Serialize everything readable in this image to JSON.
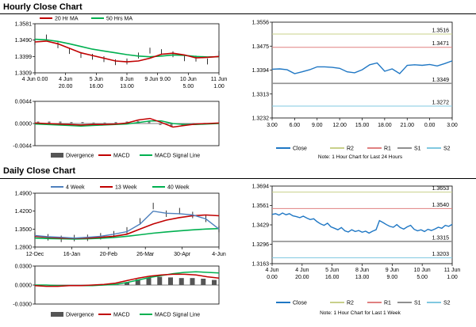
{
  "sections": [
    {
      "title": "Hourly Close Chart"
    },
    {
      "title": "Daily Close Chart"
    }
  ],
  "chart_data": [
    {
      "id": "hourly-ma",
      "type": "line",
      "legend": [
        "20 Hr MA",
        "50 Hrs MA"
      ],
      "colors": {
        "20 Hr MA": "#c00000",
        "50 Hrs MA": "#00b050",
        "price": "#000000"
      },
      "x_ticks": [
        {
          "l1": "4 Jun 0.00",
          "l2": ""
        },
        {
          "l1": "4 Jun",
          "l2": "20.00"
        },
        {
          "l1": "5 Jun",
          "l2": "16.00"
        },
        {
          "l1": "8 Jun",
          "l2": "13.00"
        },
        {
          "l1": "9 Jun 9.00",
          "l2": ""
        },
        {
          "l1": "10 Jun",
          "l2": "5.00"
        },
        {
          "l1": "11 Jun",
          "l2": "1.00"
        }
      ],
      "y_ticks": [
        "1.3581",
        "1.3490",
        "1.3399",
        "1.3309"
      ],
      "ylim": [
        1.3309,
        1.3581
      ],
      "series": [
        {
          "name": "20 Hr MA",
          "values": [
            1.348,
            1.3485,
            1.347,
            1.3445,
            1.342,
            1.3405,
            1.339,
            1.3375,
            1.337,
            1.3375,
            1.339,
            1.3412,
            1.3418,
            1.3408,
            1.3392,
            1.3395,
            1.34
          ]
        },
        {
          "name": "50 Hrs MA",
          "values": [
            1.3495,
            1.3492,
            1.3483,
            1.347,
            1.3455,
            1.344,
            1.343,
            1.342,
            1.341,
            1.3402,
            1.3398,
            1.3402,
            1.3408,
            1.3406,
            1.34,
            1.3397,
            1.3398
          ]
        },
        {
          "name": "Close",
          "values": [
            1.348,
            1.3505,
            1.3462,
            1.343,
            1.3408,
            1.3398,
            1.3385,
            1.3368,
            1.3372,
            1.3405,
            1.3432,
            1.3424,
            1.3412,
            1.339,
            1.3388,
            1.3372,
            1.3415
          ]
        }
      ]
    },
    {
      "id": "hourly-macd",
      "type": "line",
      "legend": [
        "Divergence",
        "MACD",
        "MACD Signal Line"
      ],
      "colors": {
        "Divergence": "#808080",
        "MACD": "#c00000",
        "MACD Signal Line": "#00b050"
      },
      "y_ticks": [
        "0.0044",
        "0.0000",
        "-0.0044"
      ],
      "ylim": [
        -0.0044,
        0.0044
      ],
      "series": [
        {
          "name": "Divergence",
          "values": [
            0.0004,
            0.0004,
            0.0004,
            0.0003,
            0.0003,
            0.0002,
            0.0002,
            0.0003,
            0.0004,
            0.0005,
            0.0004,
            -0.0003,
            -0.0007,
            -0.0004,
            0.0001,
            0.0001,
            0.0001
          ]
        },
        {
          "name": "MACD",
          "values": [
            0.0001,
            0.0,
            -0.0001,
            -0.0002,
            -0.0003,
            -0.0002,
            -0.0002,
            -0.0001,
            0.0001,
            0.0007,
            0.001,
            0.0002,
            -0.0007,
            -0.0004,
            -0.0001,
            0.0,
            0.0001
          ]
        },
        {
          "name": "MACD Signal Line",
          "values": [
            -0.0001,
            -0.0002,
            -0.0003,
            -0.0004,
            -0.0005,
            -0.0004,
            -0.0003,
            -0.0002,
            -0.0001,
            0.0002,
            0.0005,
            0.0005,
            0.0,
            -0.0002,
            -0.0002,
            -0.0001,
            0.0
          ]
        }
      ]
    },
    {
      "id": "hourly-24h",
      "type": "line",
      "legend": [
        "Close",
        "R2",
        "R1",
        "S1",
        "S2"
      ],
      "colors": {
        "Close": "#1f77c4",
        "R2": "#c8d08a",
        "R1": "#e08080",
        "S1": "#909090",
        "S2": "#80c8e0"
      },
      "x_ticks": [
        "3.00",
        "6.00",
        "9.00",
        "12.00",
        "15.00",
        "18.00",
        "21.00",
        "0.00",
        "3.00"
      ],
      "y_ticks": [
        "1.3556",
        "1.3475",
        "1.3394",
        "1.3313",
        "1.3232"
      ],
      "ylim": [
        1.3232,
        1.3556
      ],
      "levels": {
        "R2": 1.3516,
        "R1": 1.3471,
        "S1": 1.3349,
        "S2": 1.3272
      },
      "level_labels": {
        "R2": "1.3516",
        "R1": "1.3471",
        "S1": "1.3349",
        "S2": "1.3272"
      },
      "note": "Note: 1 Hour Chart for Last 24 Hours",
      "series": [
        {
          "name": "Close",
          "values": [
            1.3397,
            1.3398,
            1.3395,
            1.3382,
            1.3388,
            1.3395,
            1.3405,
            1.3405,
            1.3403,
            1.34,
            1.3388,
            1.3385,
            1.3395,
            1.3412,
            1.3418,
            1.339,
            1.3398,
            1.3382,
            1.341,
            1.3412,
            1.341,
            1.3413,
            1.3408,
            1.3416,
            1.3425
          ]
        }
      ]
    },
    {
      "id": "daily-ma",
      "type": "line",
      "legend": [
        "4 Week",
        "13 Week",
        "40 Week"
      ],
      "colors": {
        "4 Week": "#4f81bd",
        "13 Week": "#c00000",
        "40 Week": "#00b050",
        "price": "#000000"
      },
      "x_ticks": [
        "12-Dec",
        "16-Jan",
        "20-Feb",
        "26-Mar",
        "30-Apr",
        "4-Jun"
      ],
      "y_ticks": [
        "1.4900",
        "1.4200",
        "1.3500",
        "1.2800"
      ],
      "ylim": [
        1.28,
        1.49
      ],
      "series": [
        {
          "name": "4 Week",
          "values": [
            1.325,
            1.32,
            1.318,
            1.315,
            1.318,
            1.322,
            1.33,
            1.34,
            1.37,
            1.42,
            1.412,
            1.41,
            1.405,
            1.39,
            1.35
          ]
        },
        {
          "name": "13 Week",
          "values": [
            1.322,
            1.318,
            1.315,
            1.314,
            1.315,
            1.318,
            1.322,
            1.33,
            1.35,
            1.37,
            1.385,
            1.395,
            1.402,
            1.405,
            1.402
          ]
        },
        {
          "name": "40 Week",
          "values": [
            1.315,
            1.313,
            1.312,
            1.311,
            1.312,
            1.314,
            1.317,
            1.322,
            1.328,
            1.334,
            1.339,
            1.343,
            1.347,
            1.35,
            1.352
          ]
        },
        {
          "name": "Close",
          "values": [
            1.325,
            1.318,
            1.312,
            1.315,
            1.316,
            1.322,
            1.33,
            1.345,
            1.38,
            1.44,
            1.41,
            1.42,
            1.405,
            1.39,
            1.35
          ]
        }
      ]
    },
    {
      "id": "daily-macd",
      "type": "line",
      "legend": [
        "Divergence",
        "MACD",
        "MACD Signal Line"
      ],
      "colors": {
        "Divergence": "#555555",
        "MACD": "#c00000",
        "MACD Signal Line": "#00b050"
      },
      "y_ticks": [
        "0.0300",
        "0.0000",
        "-0.0300"
      ],
      "ylim": [
        -0.03,
        0.03
      ],
      "series": [
        {
          "name": "Divergence",
          "values": [
            0,
            0,
            0,
            0,
            0,
            0,
            0,
            0,
            0.004,
            0.009,
            0.012,
            0.013,
            0.012,
            0.011,
            0.011,
            0.01,
            0.008
          ]
        },
        {
          "name": "MACD",
          "values": [
            -0.001,
            -0.002,
            -0.002,
            -0.001,
            -0.001,
            0.0,
            0.001,
            0.003,
            0.007,
            0.011,
            0.014,
            0.016,
            0.017,
            0.017,
            0.016,
            0.013,
            0.011
          ]
        },
        {
          "name": "MACD Signal Line",
          "values": [
            0.0,
            0.0,
            -0.001,
            -0.001,
            -0.001,
            -0.001,
            0.0,
            0.001,
            0.004,
            0.008,
            0.012,
            0.015,
            0.018,
            0.02,
            0.021,
            0.02,
            0.019
          ]
        }
      ]
    },
    {
      "id": "daily-week",
      "type": "line",
      "legend": [
        "Close",
        "R2",
        "R1",
        "S1",
        "S2"
      ],
      "colors": {
        "Close": "#1f77c4",
        "R2": "#c8d08a",
        "R1": "#e08080",
        "S1": "#909090",
        "S2": "#80c8e0"
      },
      "x_ticks": [
        {
          "l1": "4 Jun",
          "l2": "0.00"
        },
        {
          "l1": "4 Jun",
          "l2": "20.00"
        },
        {
          "l1": "5 Jun",
          "l2": "16.00"
        },
        {
          "l1": "8 Jun",
          "l2": "13.00"
        },
        {
          "l1": "9 Jun",
          "l2": "9.00"
        },
        {
          "l1": "10 Jun",
          "l2": "5.00"
        },
        {
          "l1": "11 Jun",
          "l2": "1.00"
        }
      ],
      "y_ticks": [
        "1.3694",
        "1.3561",
        "1.3429",
        "1.3296",
        "1.3163"
      ],
      "ylim": [
        1.3163,
        1.3694
      ],
      "levels": {
        "R2": 1.3653,
        "R1": 1.354,
        "S1": 1.3315,
        "S2": 1.3203
      },
      "level_labels": {
        "R2": "1.3653",
        "R1": "1.3540",
        "S1": "1.3315",
        "S2": "1.3203"
      },
      "note": "Note: 1 Hour Chart for  Last 1 Week",
      "series": [
        {
          "name": "Close",
          "values": [
            1.35,
            1.3505,
            1.3495,
            1.351,
            1.3498,
            1.3505,
            1.349,
            1.3485,
            1.3478,
            1.3488,
            1.3475,
            1.3465,
            1.347,
            1.345,
            1.3435,
            1.3425,
            1.344,
            1.3415,
            1.3405,
            1.3395,
            1.341,
            1.3388,
            1.338,
            1.3395,
            1.3383,
            1.339,
            1.3378,
            1.3385,
            1.3372,
            1.3385,
            1.3395,
            1.3458,
            1.3445,
            1.343,
            1.3418,
            1.3412,
            1.343,
            1.341,
            1.34,
            1.3415,
            1.3425,
            1.3398,
            1.3388,
            1.3395,
            1.3383,
            1.3398,
            1.339,
            1.34,
            1.3412,
            1.3405,
            1.3425,
            1.3418,
            1.3432
          ]
        }
      ]
    }
  ]
}
